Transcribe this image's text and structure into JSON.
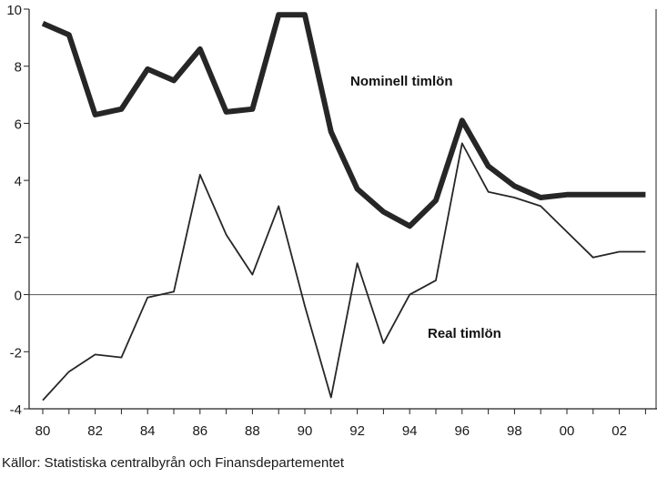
{
  "chart_data": {
    "type": "line",
    "x": [
      "80",
      "81",
      "82",
      "83",
      "84",
      "85",
      "86",
      "87",
      "88",
      "89",
      "90",
      "91",
      "92",
      "93",
      "94",
      "95",
      "96",
      "97",
      "98",
      "99",
      "00",
      "01",
      "02",
      "03"
    ],
    "x_tick_labels": [
      "80",
      "82",
      "84",
      "86",
      "88",
      "90",
      "92",
      "94",
      "96",
      "98",
      "00",
      "02"
    ],
    "y_tick_labels": [
      "10",
      "8",
      "6",
      "4",
      "2",
      "0",
      "-2",
      "-4"
    ],
    "ylim": [
      -4,
      10
    ],
    "series": [
      {
        "name": "Nominell timlön",
        "values": [
          9.5,
          9.1,
          6.3,
          6.5,
          7.9,
          7.5,
          8.6,
          6.4,
          6.5,
          9.8,
          9.8,
          5.7,
          3.7,
          2.9,
          2.4,
          3.3,
          6.1,
          4.5,
          3.8,
          3.4,
          3.5,
          3.5,
          3.5,
          3.5
        ],
        "color": "#262626"
      },
      {
        "name": "Real timlön",
        "values": [
          -3.7,
          -2.7,
          -2.1,
          -2.2,
          -0.1,
          0.1,
          4.2,
          2.1,
          0.7,
          3.1,
          -0.4,
          -3.6,
          1.1,
          -1.7,
          0.0,
          0.5,
          5.3,
          3.6,
          3.4,
          3.1,
          2.2,
          1.3,
          1.5,
          1.5
        ],
        "color": "#262626"
      }
    ],
    "zero_line": true,
    "grid": false,
    "source": "Källor: Statistiska centralbyrån och Finansdepartementet"
  }
}
